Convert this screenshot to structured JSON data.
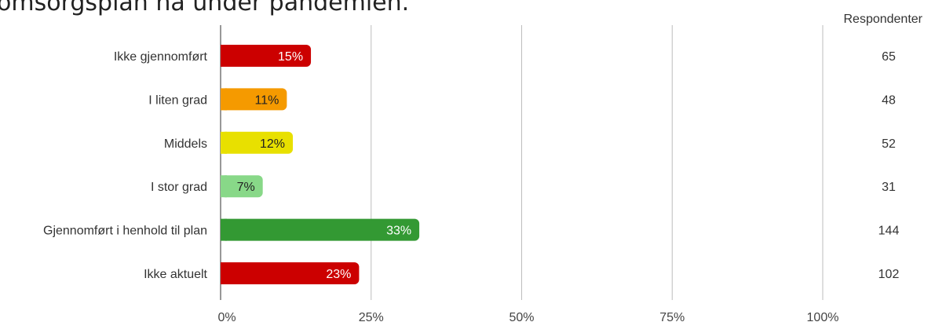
{
  "chart_data": {
    "type": "bar",
    "orientation": "horizontal",
    "title": "omsorgsplan nå under pandemien.",
    "column_header": "Respondenter",
    "categories": [
      "Ikke gjennomført",
      "I liten grad",
      "Middels",
      "I stor grad",
      "Gjennomført i henhold til plan",
      "Ikke aktuelt"
    ],
    "values": [
      15,
      11,
      12,
      7,
      33,
      23
    ],
    "value_labels": [
      "15%",
      "11%",
      "12%",
      "7%",
      "33%",
      "23%"
    ],
    "respondents": [
      65,
      48,
      52,
      31,
      144,
      102
    ],
    "bar_colors": [
      "#cc0000",
      "#f59a00",
      "#e8e000",
      "#88d888",
      "#339933",
      "#cc0000"
    ],
    "label_colors": [
      "#ffffff",
      "#222222",
      "#222222",
      "#222222",
      "#ffffff",
      "#ffffff"
    ],
    "xlim": [
      0,
      100
    ],
    "xticks": [
      0,
      25,
      50,
      75,
      100
    ],
    "xtick_labels": [
      "0%",
      "25%",
      "50%",
      "75%",
      "100%"
    ],
    "grid": true
  }
}
